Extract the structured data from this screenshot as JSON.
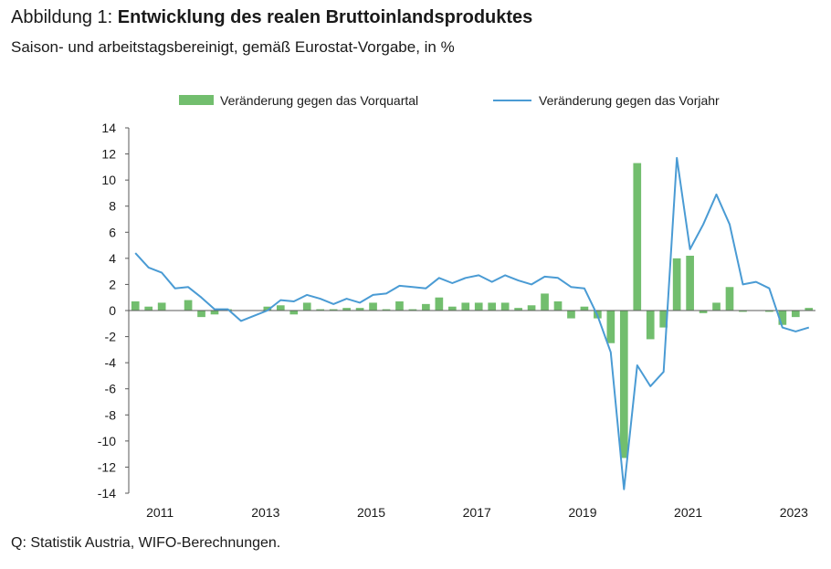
{
  "figure": {
    "title_prefix": "Abbildung 1: ",
    "title_main": "Entwicklung des realen Bruttoinlandsproduktes",
    "subtitle": "Saison- und arbeitstagsbereinigt, gemäß Eurostat-Vorgabe, in %",
    "source": "Q: Statistik Austria, WIFO-Berechnungen."
  },
  "colors": {
    "bars": "#72be6e",
    "line": "#4a9bd4",
    "axis": "#595959",
    "text": "#1a1a1a"
  },
  "chart_data": {
    "type": "bar",
    "title": "",
    "xlabel": "",
    "ylabel": "",
    "ylim": [
      -14,
      14
    ],
    "yticks": [
      "14",
      "12",
      "10",
      "8",
      "6",
      "4",
      "2",
      "0",
      "-2",
      "-4",
      "-6",
      "-8",
      "-10",
      "-12",
      "-14"
    ],
    "grid": false,
    "legend_position": "top-center",
    "periods": [
      "2010Q3",
      "2010Q4",
      "2011Q1",
      "2011Q2",
      "2011Q3",
      "2011Q4",
      "2012Q1",
      "2012Q2",
      "2012Q3",
      "2012Q4",
      "2013Q1",
      "2013Q2",
      "2013Q3",
      "2013Q4",
      "2014Q1",
      "2014Q2",
      "2014Q3",
      "2014Q4",
      "2015Q1",
      "2015Q2",
      "2015Q3",
      "2015Q4",
      "2016Q1",
      "2016Q2",
      "2016Q3",
      "2016Q4",
      "2017Q1",
      "2017Q2",
      "2017Q3",
      "2017Q4",
      "2018Q1",
      "2018Q2",
      "2018Q3",
      "2018Q4",
      "2019Q1",
      "2019Q2",
      "2019Q3",
      "2019Q4",
      "2020Q1",
      "2020Q2",
      "2020Q3",
      "2020Q4",
      "2021Q1",
      "2021Q2",
      "2021Q3",
      "2021Q4",
      "2022Q1",
      "2022Q2",
      "2022Q3",
      "2022Q4",
      "2023Q1",
      "2023Q2"
    ],
    "x_tick_labels": [
      {
        "label": "2011",
        "period_index": 2
      },
      {
        "label": "2013",
        "period_index": 10
      },
      {
        "label": "2015",
        "period_index": 18
      },
      {
        "label": "2017",
        "period_index": 26
      },
      {
        "label": "2019",
        "period_index": 34
      },
      {
        "label": "2021",
        "period_index": 42
      },
      {
        "label": "2023",
        "period_index": 50
      }
    ],
    "series": [
      {
        "name": "Veränderung gegen das Vorquartal",
        "type": "bar",
        "values": [
          0.7,
          0.3,
          0.6,
          0.0,
          0.8,
          -0.5,
          -0.3,
          0.1,
          0.0,
          0.0,
          0.3,
          0.4,
          -0.3,
          0.6,
          0.1,
          0.1,
          0.2,
          0.2,
          0.6,
          0.1,
          0.7,
          0.1,
          0.5,
          1.0,
          0.3,
          0.6,
          0.6,
          0.6,
          0.6,
          0.2,
          0.4,
          1.3,
          0.7,
          -0.6,
          0.3,
          -0.6,
          -2.5,
          -11.3,
          11.3,
          -2.2,
          -1.3,
          4.0,
          4.2,
          -0.2,
          0.6,
          1.8,
          -0.1,
          0.0,
          -0.1,
          -1.1,
          -0.5,
          0.2
        ]
      },
      {
        "name": "Veränderung gegen das Vorjahr",
        "type": "line",
        "values": [
          4.4,
          3.3,
          2.9,
          1.7,
          1.8,
          1.0,
          0.1,
          0.1,
          -0.8,
          -0.4,
          0.0,
          0.8,
          0.7,
          1.2,
          0.9,
          0.5,
          0.9,
          0.6,
          1.2,
          1.3,
          1.9,
          1.8,
          1.7,
          2.5,
          2.1,
          2.5,
          2.7,
          2.2,
          2.7,
          2.3,
          2.0,
          2.6,
          2.5,
          1.8,
          1.7,
          -0.4,
          -3.2,
          -13.7,
          -4.2,
          -5.8,
          -4.7,
          11.7,
          4.7,
          6.6,
          8.9,
          6.6,
          2.0,
          2.2,
          1.7,
          -1.3,
          -1.6,
          -1.3
        ]
      }
    ]
  }
}
